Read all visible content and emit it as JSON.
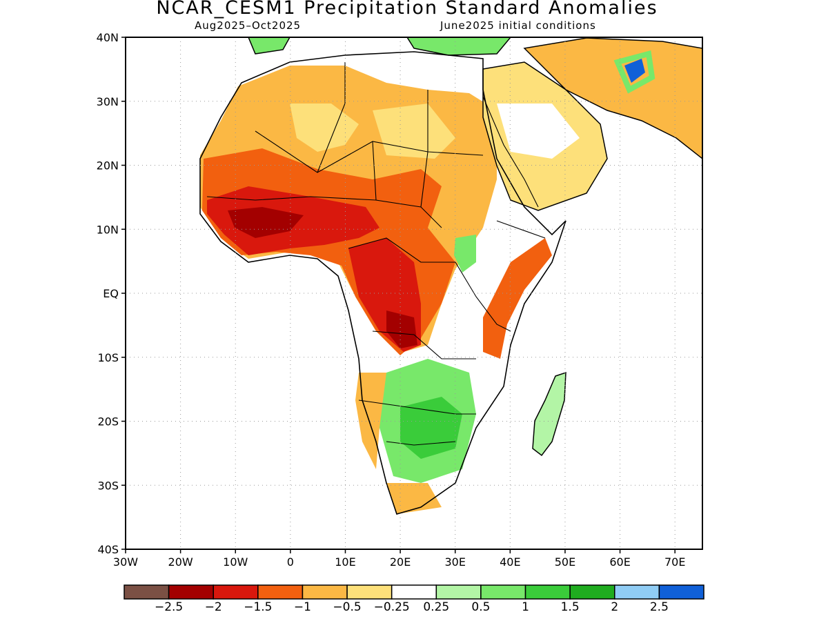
{
  "title": "NCAR_CESM1 Precipitation Standard Anomalies",
  "subtitle_left": "Aug2025–Oct2025",
  "subtitle_right": "June2025 initial conditions",
  "axes": {
    "lat_ticks": [
      "40N",
      "30N",
      "20N",
      "10N",
      "EQ",
      "10S",
      "20S",
      "30S",
      "40S"
    ],
    "lon_ticks": [
      "30W",
      "20W",
      "10W",
      "0",
      "10E",
      "20E",
      "30E",
      "40E",
      "50E",
      "60E",
      "70E"
    ],
    "lat_range": [
      -40,
      40
    ],
    "lon_range": [
      -30,
      75
    ],
    "grid": "dotted"
  },
  "colorbar": {
    "labels": [
      "−2.5",
      "−2",
      "−1.5",
      "−1",
      "−0.5",
      "−0.25",
      "0.25",
      "0.5",
      "1",
      "1.5",
      "2",
      "2.5"
    ],
    "colors": [
      "#7b5044",
      "#a30000",
      "#d9180d",
      "#f2600f",
      "#fbb844",
      "#fde07a",
      "#ffffff",
      "#b3f5a6",
      "#78e86a",
      "#3acc3a",
      "#1fac1f",
      "#90cdf5",
      "#1060d8"
    ]
  }
}
